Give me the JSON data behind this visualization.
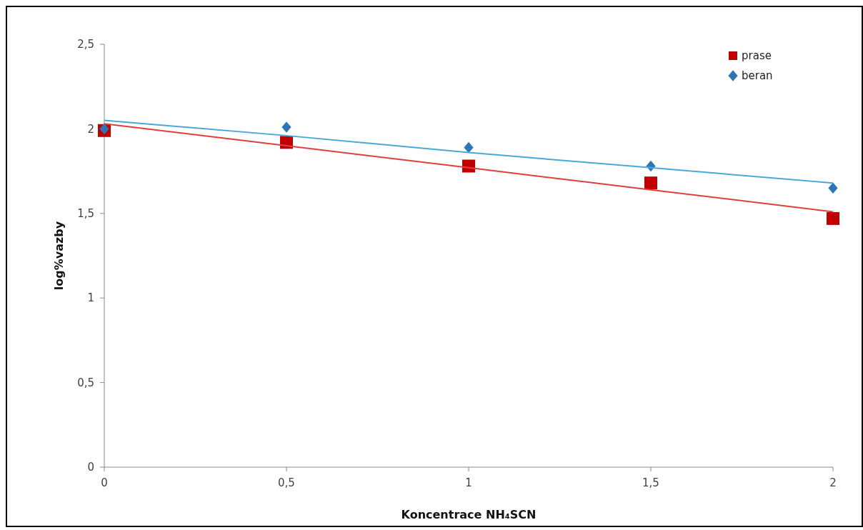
{
  "chart_data": {
    "type": "scatter",
    "xlabel": "Koncentrace NH₄SCN",
    "ylabel": "log%vazby",
    "x": [
      0,
      0.5,
      1,
      1.5,
      2
    ],
    "series": [
      {
        "name": "prase",
        "color": "#c00000",
        "marker": "square",
        "values": [
          1.99,
          1.92,
          1.78,
          1.68,
          1.47
        ]
      },
      {
        "name": "beran",
        "color": "#2e75b6",
        "marker": "diamond",
        "values": [
          2.0,
          2.01,
          1.89,
          1.78,
          1.65
        ]
      },
      {
        "type": "line",
        "color": "#e0403c",
        "values": [
          2.03,
          1.9,
          1.77,
          1.64,
          1.51
        ]
      },
      {
        "type": "line",
        "color": "#4aa8d8",
        "values": [
          2.05,
          1.96,
          1.86,
          1.77,
          1.68
        ]
      }
    ],
    "xlim": [
      0,
      2
    ],
    "xticks": [
      0,
      {
        "value": 0.5,
        "label": "0,5"
      },
      1,
      {
        "value": 1.5,
        "label": "1,5"
      },
      2
    ],
    "ylim": [
      0,
      2.5
    ],
    "yticks": [
      0,
      {
        "value": 0.5,
        "label": "0,5"
      },
      1,
      {
        "value": 1.5,
        "label": "1,5"
      },
      2,
      {
        "value": 2.5,
        "label": "2,5"
      }
    ],
    "legend": "top right",
    "grid": false
  }
}
